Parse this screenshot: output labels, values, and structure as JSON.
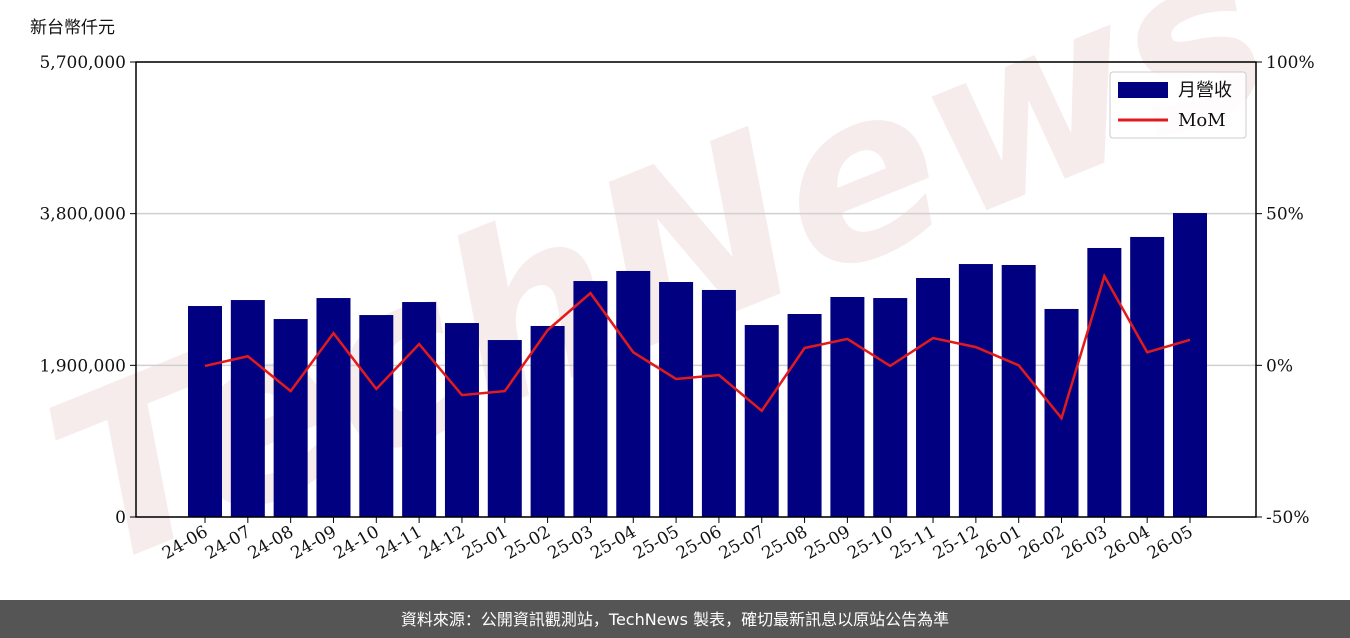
{
  "chart_data": {
    "type": "bar-line",
    "y_label": "新台幣仟元",
    "watermark": "TechNews",
    "categories": [
      "24-06",
      "24-07",
      "24-08",
      "24-09",
      "24-10",
      "24-11",
      "24-12",
      "25-01",
      "25-02",
      "25-03",
      "25-04",
      "25-05",
      "25-06",
      "25-07",
      "25-08",
      "25-09",
      "25-10",
      "25-11",
      "25-12",
      "26-01",
      "26-02",
      "26-03",
      "26-04",
      "26-05"
    ],
    "series": [
      {
        "name": "月營收",
        "type": "bar",
        "color": "#000080",
        "values": [
          2643000,
          2718000,
          2480000,
          2743000,
          2530000,
          2693000,
          2430000,
          2217000,
          2393000,
          2956000,
          3082000,
          2944000,
          2844000,
          2405000,
          2543000,
          2756000,
          2743000,
          2994000,
          3169000,
          3157000,
          2606000,
          3370000,
          3508000,
          3808000
        ]
      },
      {
        "name": "MoM",
        "type": "line",
        "axis": "y2",
        "color": "#e31a1c",
        "values": [
          -0.2,
          3,
          -8.5,
          10.6,
          -7.8,
          7,
          -9.8,
          -8.5,
          11.6,
          23.8,
          4.3,
          -4.5,
          -3.2,
          -15,
          5.7,
          8.7,
          -0.2,
          9,
          6,
          0,
          -17.4,
          29.4,
          4.3,
          8.4
        ]
      }
    ],
    "ylim": [
      0,
      5700000
    ],
    "yticks": [
      0,
      {
        "value": 1900000,
        "label": "1,900,000"
      },
      {
        "value": 3800000,
        "label": "3,800,000"
      },
      {
        "value": 5700000,
        "label": "5,700,000"
      }
    ],
    "y2lim": [
      -50,
      100
    ],
    "y2ticks": [
      {
        "value": -50,
        "label": "-50%"
      },
      {
        "value": 0,
        "label": "0%"
      },
      {
        "value": 50,
        "label": "50%"
      },
      {
        "value": 100,
        "label": "100%"
      }
    ],
    "grid": true,
    "legend": "upper right",
    "footer": "資料來源：公開資訊觀測站，TechNews 製表，確切最新訊息以原站公告為準"
  }
}
